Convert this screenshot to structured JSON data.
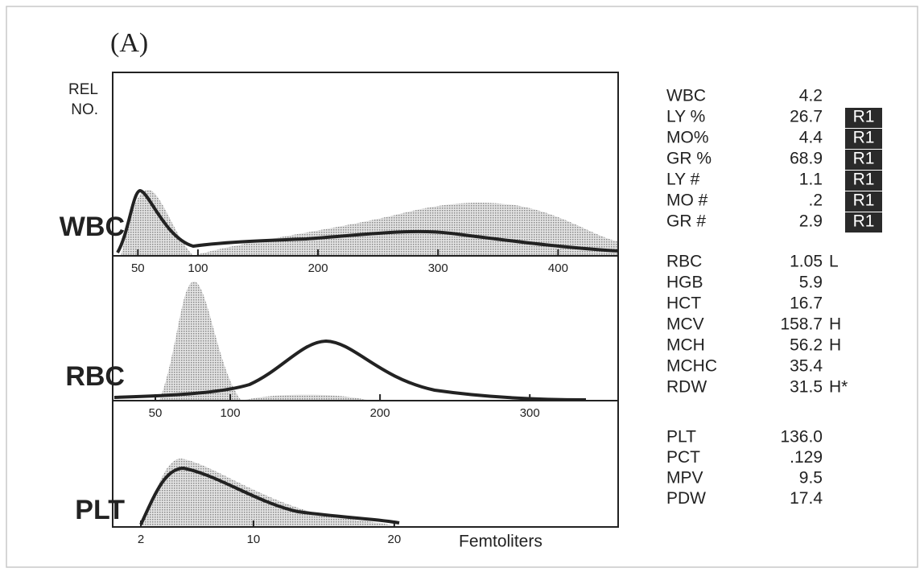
{
  "figure": {
    "label": "(A)",
    "y_axis_label": [
      "REL",
      "NO."
    ],
    "x_axis_label": "Femtoliters",
    "panels": [
      {
        "name": "WBC",
        "xlim": [
          29,
          450
        ],
        "xticks": [
          50,
          100,
          200,
          300,
          400
        ]
      },
      {
        "name": "RBC",
        "xlim": [
          21.5,
          359
        ],
        "xticks": [
          50,
          100,
          200,
          300
        ]
      },
      {
        "name": "PLT",
        "xlim": [
          0,
          35.9
        ],
        "xticks": [
          2,
          10,
          20
        ]
      }
    ]
  },
  "results": [
    {
      "rows": [
        {
          "name": "WBC",
          "value": "4.2"
        },
        {
          "name": "LY %",
          "value": "26.7",
          "flag": "R1"
        },
        {
          "name": "MO%",
          "value": "4.4",
          "flag": "R1"
        },
        {
          "name": "GR %",
          "value": "68.9",
          "flag": "R1"
        },
        {
          "name": "LY #",
          "value": "1.1",
          "flag": "R1"
        },
        {
          "name": "MO #",
          "value": ".2",
          "flag": "R1"
        },
        {
          "name": "GR #",
          "value": "2.9",
          "flag": "R1"
        }
      ]
    },
    {
      "rows": [
        {
          "name": "RBC",
          "value": "1.05",
          "flag": "L"
        },
        {
          "name": "HGB",
          "value": "5.9"
        },
        {
          "name": "HCT",
          "value": "16.7"
        },
        {
          "name": "MCV",
          "value": "158.7",
          "flag": "H"
        },
        {
          "name": "MCH",
          "value": "56.2",
          "flag": "H"
        },
        {
          "name": "MCHC",
          "value": "35.4"
        },
        {
          "name": "RDW",
          "value": "31.5",
          "flag": "H*"
        }
      ]
    },
    {
      "rows": [
        {
          "name": "PLT",
          "value": "136.0"
        },
        {
          "name": "PCT",
          "value": ".129"
        },
        {
          "name": "MPV",
          "value": "9.5"
        },
        {
          "name": "PDW",
          "value": "17.4"
        }
      ]
    }
  ]
}
